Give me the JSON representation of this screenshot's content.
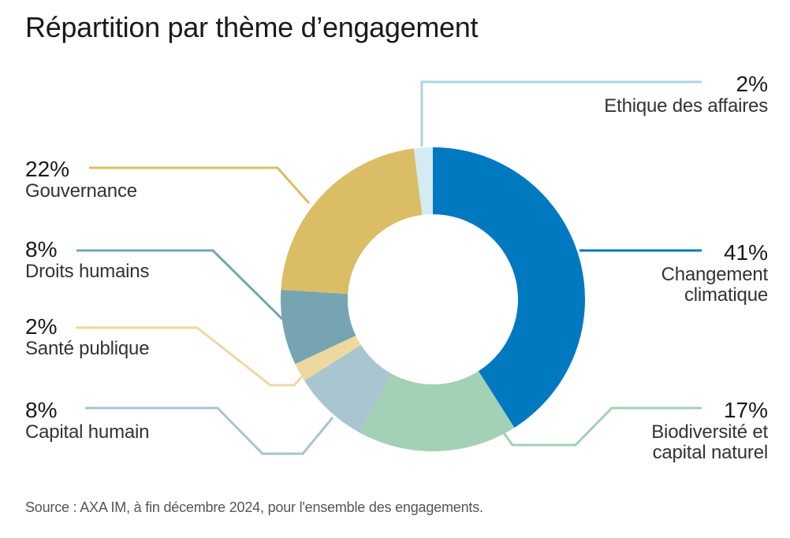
{
  "chart_data": {
    "type": "pie",
    "variant": "donut",
    "title": "Répartition par thème d’engagement",
    "start": "top",
    "direction": "clockwise",
    "slices": [
      {
        "pct_label": "41%",
        "value": 41,
        "label": "Changement climatique",
        "label_lines": [
          "Changement",
          "climatique"
        ],
        "color": "#0079C1"
      },
      {
        "pct_label": "17%",
        "value": 17,
        "label": "Biodiversité et capital naturel",
        "label_lines": [
          "Biodiversité et",
          "capital naturel"
        ],
        "color": "#A3D1B5"
      },
      {
        "pct_label": "8%",
        "value": 8,
        "label": "Capital humain",
        "label_lines": [
          "Capital humain"
        ],
        "color": "#A9C5CF"
      },
      {
        "pct_label": "2%",
        "value": 2,
        "label": "Santé publique",
        "label_lines": [
          "Santé publique"
        ],
        "color": "#EDD8A0"
      },
      {
        "pct_label": "8%",
        "value": 8,
        "label": "Droits humains",
        "label_lines": [
          "Droits humains"
        ],
        "color": "#76A4B2"
      },
      {
        "pct_label": "22%",
        "value": 22,
        "label": "Gouvernance",
        "label_lines": [
          "Gouvernance"
        ],
        "color": "#DBBD66"
      },
      {
        "pct_label": "2%",
        "value": 2,
        "label": "Ethique des affaires",
        "label_lines": [
          "Ethique des affaires"
        ],
        "color": "#D4EBF2"
      }
    ],
    "source": "Source : AXA IM, à fin décembre 2024, pour l'ensemble des engagements."
  }
}
